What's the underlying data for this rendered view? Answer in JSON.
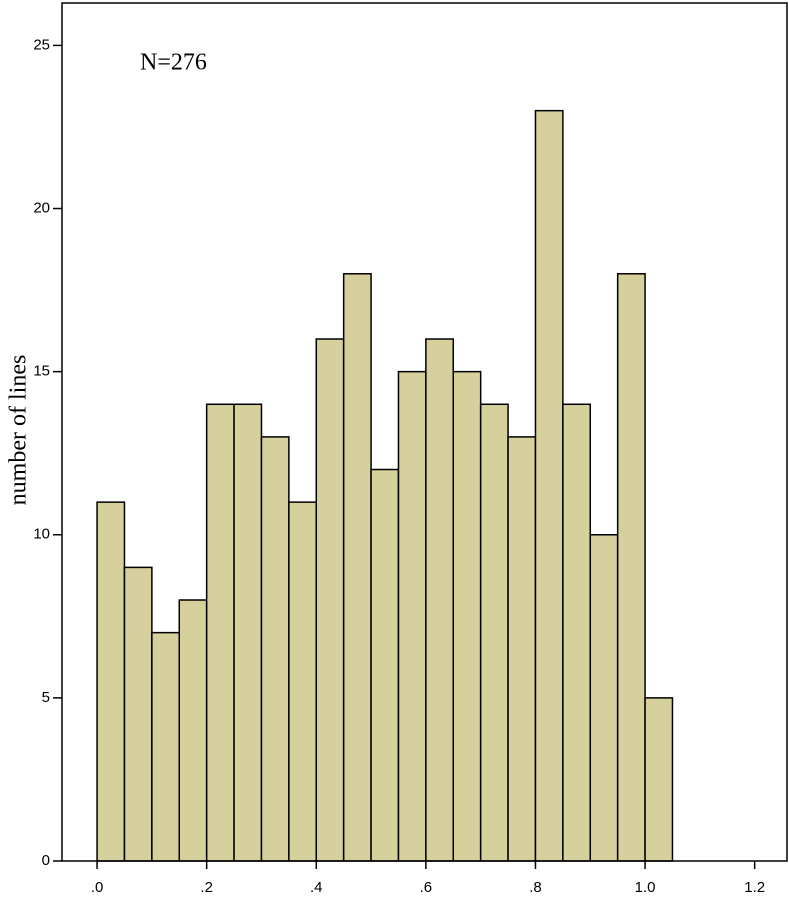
{
  "chart_data": {
    "type": "histogram",
    "annotation": "N=276",
    "y_label": "number of lines",
    "bins": [
      0,
      0.05,
      0.1,
      0.15,
      0.2,
      0.25,
      0.3,
      0.35,
      0.4,
      0.45,
      0.5,
      0.55,
      0.6,
      0.65,
      0.7,
      0.75,
      0.8,
      0.85,
      0.9,
      0.95,
      1.0,
      1.05
    ],
    "values": [
      11,
      9,
      7,
      8,
      14,
      14,
      13,
      11,
      16,
      18,
      12,
      15,
      16,
      15,
      14,
      13,
      23,
      14,
      10,
      18,
      5
    ],
    "color": "#d6d09c",
    "edge_color": "#000000",
    "xlim": [
      -0.064,
      1.259
    ],
    "xticks": [
      {
        "value": 0,
        "label": ".0"
      },
      {
        "value": 0.2,
        "label": ".2"
      },
      {
        "value": 0.4,
        "label": ".4"
      },
      {
        "value": 0.6,
        "label": ".6"
      },
      {
        "value": 0.8,
        "label": ".8"
      },
      {
        "value": 1.0,
        "label": "1.0"
      },
      {
        "value": 1.2,
        "label": "1.2"
      }
    ],
    "ylim": [
      0,
      26.3
    ],
    "yticks": [
      0,
      5,
      10,
      15,
      20,
      25
    ]
  }
}
